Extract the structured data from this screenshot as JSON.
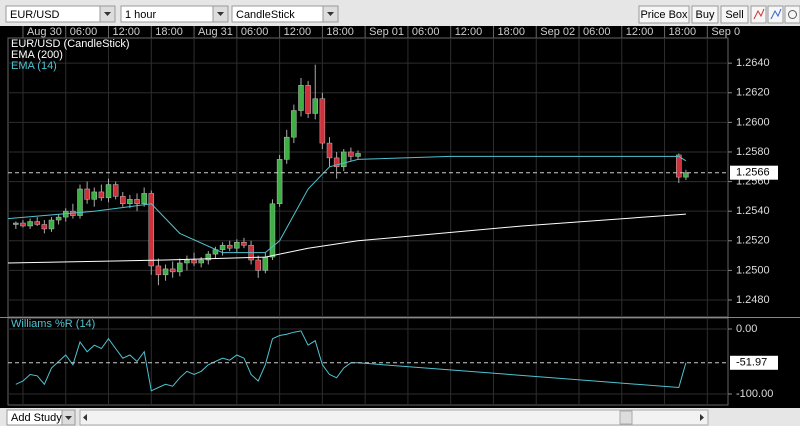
{
  "toolbar": {
    "symbol": "EUR/USD",
    "interval": "1 hour",
    "chart_style": "CandleStick",
    "buttons": [
      "Price Box",
      "Buy",
      "Sell"
    ]
  },
  "footer": {
    "add_study": "Add Study"
  },
  "chart_data": [
    {
      "type": "candlestick",
      "title": "EUR/USD (CandleStick)",
      "grid": true,
      "up_color": "#3cb043",
      "down_color": "#d0303a",
      "x": [
        -1,
        0,
        1,
        2,
        3,
        4,
        5,
        6,
        7,
        8,
        9,
        10,
        11,
        12,
        13,
        14,
        15,
        16,
        17,
        18,
        19,
        20,
        21,
        22,
        23,
        24,
        25,
        26,
        27,
        28,
        29,
        30,
        31,
        32,
        33,
        34,
        35,
        36,
        37,
        38,
        39,
        40,
        41,
        42,
        43,
        44,
        45,
        46,
        47,
        92,
        93
      ],
      "open": [
        1.2531,
        1.2532,
        1.253,
        1.2533,
        1.2531,
        1.2528,
        1.2534,
        1.2536,
        1.254,
        1.2537,
        1.2555,
        1.2548,
        1.2553,
        1.2549,
        1.2558,
        1.255,
        1.2545,
        1.2548,
        1.2545,
        1.2552,
        1.2503,
        1.2497,
        1.2501,
        1.2499,
        1.2505,
        1.2507,
        1.2505,
        1.2507,
        1.2511,
        1.2514,
        1.2517,
        1.2515,
        1.2519,
        1.2517,
        1.2507,
        1.25,
        1.2509,
        1.2545,
        1.2575,
        1.259,
        1.2608,
        1.2625,
        1.2606,
        1.2616,
        1.2586,
        1.2576,
        1.257,
        1.258,
        1.2577,
        1.2578,
        1.2563
      ],
      "high": [
        1.2533,
        1.2534,
        1.2535,
        1.2536,
        1.2534,
        1.2536,
        1.2538,
        1.2542,
        1.2545,
        1.2558,
        1.256,
        1.2556,
        1.2558,
        1.2562,
        1.256,
        1.2553,
        1.2551,
        1.2552,
        1.2556,
        1.2554,
        1.2508,
        1.2504,
        1.2506,
        1.2508,
        1.251,
        1.2512,
        1.2509,
        1.2513,
        1.2516,
        1.2519,
        1.252,
        1.2521,
        1.2522,
        1.252,
        1.251,
        1.2512,
        1.2548,
        1.2578,
        1.2595,
        1.2612,
        1.263,
        1.2628,
        1.2639,
        1.262,
        1.259,
        1.258,
        1.2582,
        1.2583,
        1.2581,
        1.2579,
        1.2568
      ],
      "low": [
        1.2528,
        1.2529,
        1.2528,
        1.253,
        1.2525,
        1.2526,
        1.2531,
        1.2533,
        1.2535,
        1.2535,
        1.2545,
        1.2543,
        1.2547,
        1.2546,
        1.2548,
        1.2543,
        1.2542,
        1.254,
        1.2543,
        1.2497,
        1.249,
        1.2493,
        1.2495,
        1.2496,
        1.25,
        1.2503,
        1.2502,
        1.2504,
        1.2508,
        1.251,
        1.2513,
        1.2512,
        1.2515,
        1.2504,
        1.2495,
        1.2498,
        1.2507,
        1.2543,
        1.2572,
        1.2586,
        1.2604,
        1.2603,
        1.2602,
        1.2582,
        1.257,
        1.2562,
        1.2567,
        1.2574,
        1.2575,
        1.2559,
        1.2561
      ],
      "close": [
        1.2532,
        1.253,
        1.2533,
        1.2531,
        1.2528,
        1.2534,
        1.2536,
        1.254,
        1.2537,
        1.2555,
        1.2548,
        1.2553,
        1.2549,
        1.2558,
        1.255,
        1.2545,
        1.2548,
        1.2545,
        1.2552,
        1.2503,
        1.2497,
        1.2501,
        1.2499,
        1.2505,
        1.2507,
        1.2505,
        1.2507,
        1.2511,
        1.2514,
        1.2517,
        1.2515,
        1.2519,
        1.2517,
        1.2507,
        1.25,
        1.2509,
        1.2545,
        1.2575,
        1.259,
        1.2608,
        1.2625,
        1.2606,
        1.2616,
        1.2586,
        1.2576,
        1.257,
        1.258,
        1.2577,
        1.2579,
        1.2563,
        1.2566
      ],
      "series": [
        {
          "name": "EMA (200)",
          "color": "#ffffff",
          "x": [
            -2.1,
            20,
            34,
            40,
            47,
            70,
            93
          ],
          "values": [
            1.2505,
            1.2507,
            1.2509,
            1.2515,
            1.252,
            1.253,
            1.2538
          ]
        },
        {
          "name": "EMA (14)",
          "color": "#4fc3d0",
          "x": [
            -2.1,
            10,
            18,
            22,
            28,
            34,
            36,
            40,
            43,
            47,
            60,
            92,
            93
          ],
          "values": [
            1.2535,
            1.254,
            1.2545,
            1.2525,
            1.2512,
            1.2512,
            1.252,
            1.2555,
            1.257,
            1.2575,
            1.2577,
            1.2577,
            1.2574
          ]
        }
      ],
      "xlim": [
        -2.1,
        98.9
      ],
      "xticks": [
        {
          "value": 0,
          "label": "Aug 30"
        },
        {
          "value": 6,
          "label": "06:00"
        },
        {
          "value": 12,
          "label": "12:00"
        },
        {
          "value": 18,
          "label": "18:00"
        },
        {
          "value": 24,
          "label": "Aug 31"
        },
        {
          "value": 30,
          "label": "06:00"
        },
        {
          "value": 36,
          "label": "12:00"
        },
        {
          "value": 42,
          "label": "18:00"
        },
        {
          "value": 48,
          "label": "Sep 01"
        },
        {
          "value": 54,
          "label": "06:00"
        },
        {
          "value": 60,
          "label": "12:00"
        },
        {
          "value": 66,
          "label": "18:00"
        },
        {
          "value": 72,
          "label": "Sep 02"
        },
        {
          "value": 78,
          "label": "06:00"
        },
        {
          "value": 84,
          "label": "12:00"
        },
        {
          "value": 90,
          "label": "18:00"
        },
        {
          "value": 96,
          "label": "Sep 0"
        }
      ],
      "ylim": [
        1.24685,
        1.2657
      ],
      "yticks": [
        {
          "value": 1.248,
          "label": "1.2480"
        },
        {
          "value": 1.25,
          "label": "1.2500"
        },
        {
          "value": 1.252,
          "label": "1.2520"
        },
        {
          "value": 1.254,
          "label": "1.2540"
        },
        {
          "value": 1.256,
          "label": "1.2560"
        },
        {
          "value": 1.258,
          "label": "1.2580"
        },
        {
          "value": 1.26,
          "label": "1.2600"
        },
        {
          "value": 1.262,
          "label": "1.2620"
        },
        {
          "value": 1.264,
          "label": "1.2640"
        }
      ]
    },
    {
      "type": "line",
      "title": "Williams %R (14)",
      "color": "#4fc3d0",
      "grid": true,
      "x": [
        -1,
        0,
        1,
        2,
        3,
        4,
        5,
        6,
        7,
        8,
        9,
        10,
        11,
        12,
        13,
        14,
        15,
        16,
        17,
        18,
        19,
        20,
        21,
        22,
        23,
        24,
        25,
        26,
        27,
        28,
        29,
        30,
        31,
        32,
        33,
        34,
        35,
        36,
        37,
        38,
        39,
        40,
        41,
        42,
        43,
        44,
        45,
        46,
        47,
        92,
        93
      ],
      "values": [
        -85,
        -80,
        -70,
        -72,
        -85,
        -60,
        -50,
        -40,
        -55,
        -20,
        -35,
        -25,
        -30,
        -15,
        -30,
        -45,
        -40,
        -50,
        -35,
        -95,
        -90,
        -85,
        -88,
        -75,
        -65,
        -70,
        -65,
        -55,
        -50,
        -45,
        -48,
        -40,
        -45,
        -70,
        -80,
        -55,
        -15,
        -10,
        -8,
        -5,
        -3,
        -25,
        -18,
        -55,
        -70,
        -75,
        -60,
        -52,
        -52,
        -90,
        -51.97
      ],
      "xlim": [
        -2.1,
        98.9
      ],
      "ylim": [
        -116.9,
        16.9
      ],
      "yticks": [
        {
          "value": 0,
          "label": "0.00"
        },
        {
          "value": -100,
          "label": "-100.00"
        }
      ]
    }
  ]
}
